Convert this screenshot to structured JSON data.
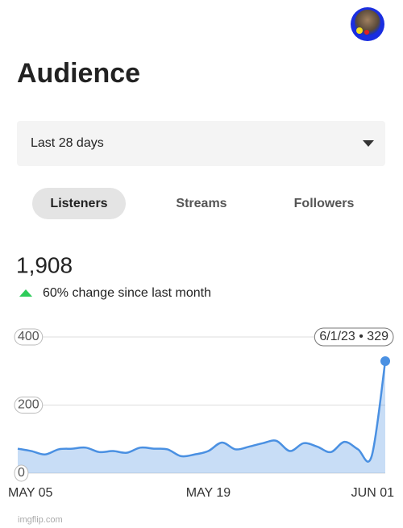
{
  "header": {
    "title": "Audience"
  },
  "dropdown": {
    "label": "Last 28 days"
  },
  "tabs": [
    "Listeners",
    "Streams",
    "Followers"
  ],
  "stats": {
    "total": "1,908",
    "change": "60% change since last month"
  },
  "chart_data": {
    "type": "area",
    "categories": [
      "MAY 05",
      null,
      null,
      null,
      null,
      null,
      null,
      null,
      null,
      null,
      null,
      null,
      null,
      null,
      "MAY 19",
      null,
      null,
      null,
      null,
      null,
      null,
      null,
      null,
      null,
      null,
      null,
      null,
      "JUN 01"
    ],
    "values": [
      72,
      65,
      55,
      70,
      72,
      75,
      62,
      65,
      60,
      75,
      72,
      70,
      50,
      55,
      65,
      90,
      70,
      78,
      88,
      95,
      65,
      88,
      78,
      62,
      92,
      70,
      50,
      329
    ],
    "color": "#4a90e2",
    "ylim": [
      0,
      400
    ],
    "yticks": [
      0,
      200,
      400
    ],
    "grid": true,
    "annotation": "6/1/23 • 329"
  },
  "watermark": "imgflip.com"
}
